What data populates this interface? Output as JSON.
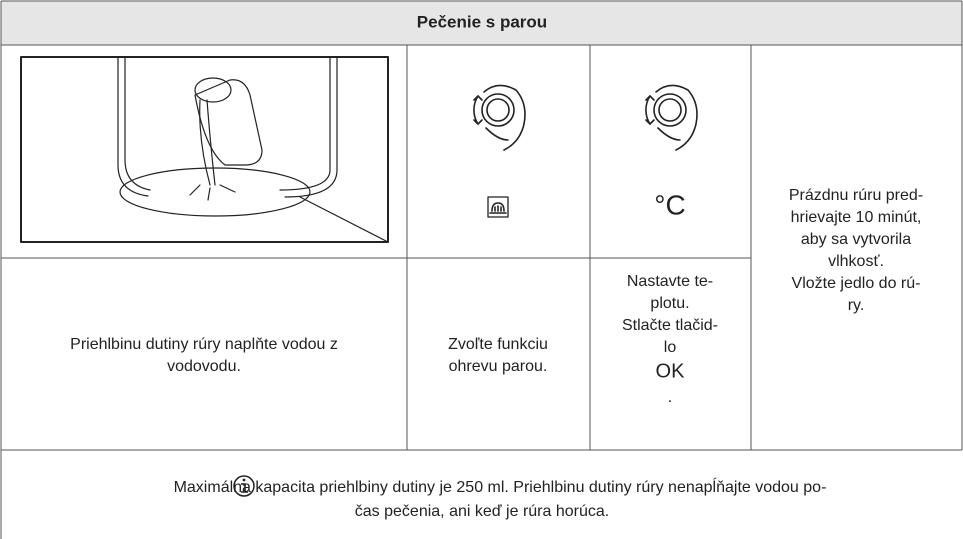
{
  "header": {
    "title": "Pečenie s parou"
  },
  "table": {
    "temperature_symbol": "°C",
    "instructions": [
      [
        "Priehlbinu dutiny rúry naplňte vodou z",
        "vodovodu."
      ],
      [
        "Zvoľte funkciu",
        "ohrevu parou."
      ],
      [
        "Nastavte te-",
        "plotu.",
        "Stlačte tlačid-",
        "lo",
        "OK",
        "."
      ]
    ],
    "side_note": [
      "Prázdnu rúru pred-",
      "hrievajte 10 minút,",
      "aby sa vytvorila",
      "vlhkosť.",
      "Vložte jedlo do rú-",
      "ry."
    ]
  },
  "note": {
    "lines": [
      "Maximálna kapacita priehlbiny dutiny je 250 ml. Priehlbinu dutiny rúry nenapĺňajte vodou po-",
      "čas pečenia, ani keď je rúra horúca."
    ]
  }
}
